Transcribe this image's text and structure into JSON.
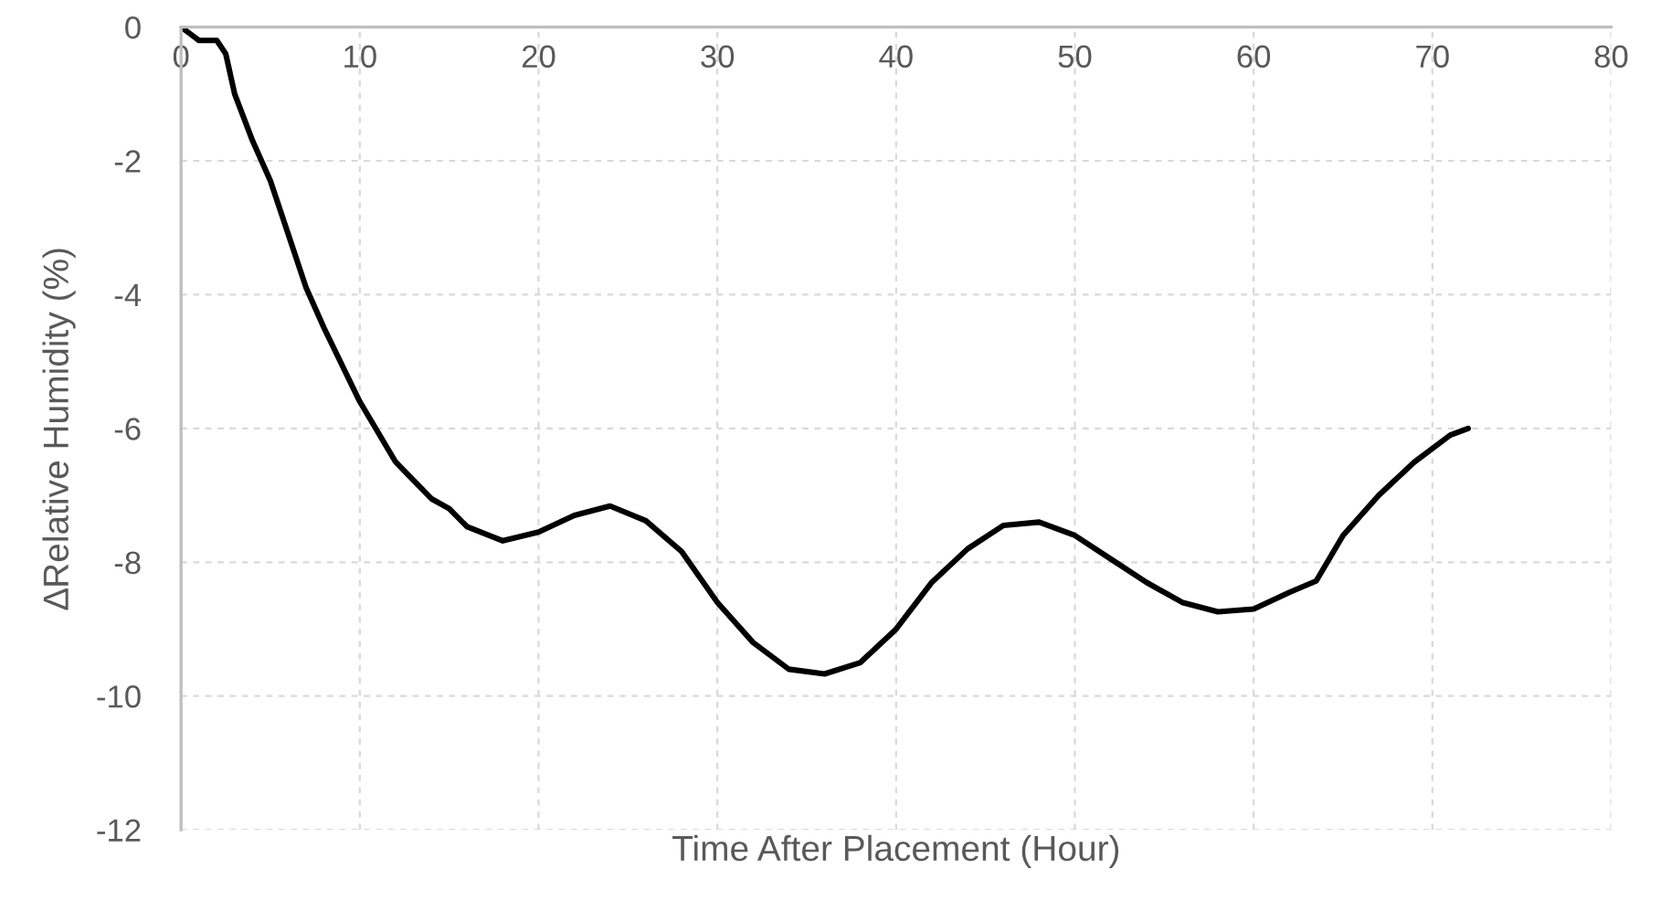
{
  "chart_data": {
    "type": "line",
    "xlabel": "Time After Placement (Hour)",
    "ylabel": "∆Relative Humidity (%)",
    "xlim": [
      0,
      80
    ],
    "xticks": [
      0,
      10,
      20,
      30,
      40,
      50,
      60,
      70,
      80
    ],
    "ylim": [
      -12,
      0
    ],
    "yticks": [
      -12,
      -10,
      -8,
      -6,
      -4,
      -2,
      0
    ],
    "grid": true,
    "marker": "none",
    "line_style": "solid",
    "series": [
      {
        "color": "#000000",
        "x": [
          0,
          0.5,
          1,
          2,
          2.5,
          3,
          4,
          5,
          6,
          7,
          8,
          10,
          12,
          14,
          15,
          16,
          18,
          20,
          22,
          24,
          26,
          28,
          30,
          32,
          34,
          36,
          38,
          40,
          42,
          44,
          46,
          48,
          50,
          52,
          54,
          56,
          58,
          60,
          62,
          63.5,
          65,
          67,
          69,
          71,
          72
        ],
        "values": [
          0,
          -0.1,
          -0.2,
          -0.2,
          -0.4,
          -1.0,
          -1.7,
          -2.3,
          -3.1,
          -3.9,
          -4.5,
          -5.6,
          -6.5,
          -7.05,
          -7.2,
          -7.47,
          -7.68,
          -7.55,
          -7.3,
          -7.16,
          -7.38,
          -7.84,
          -8.6,
          -9.2,
          -9.6,
          -9.67,
          -9.5,
          -9.0,
          -8.3,
          -7.8,
          -7.45,
          -7.4,
          -7.6,
          -7.95,
          -8.3,
          -8.6,
          -8.74,
          -8.7,
          -8.45,
          -8.28,
          -7.6,
          -7.0,
          -6.5,
          -6.1,
          -6.0
        ]
      }
    ]
  }
}
